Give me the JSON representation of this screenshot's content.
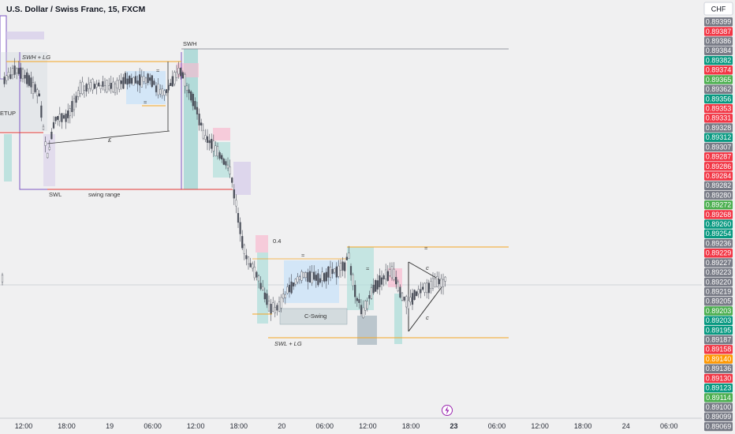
{
  "chart_data": {
    "type": "candlestick",
    "title": "U.S. Dollar / Swiss Franc, 15, FXCM",
    "currency": "CHF",
    "x_ticks": [
      "12:00",
      "18:00",
      "19",
      "06:00",
      "12:00",
      "18:00",
      "20",
      "06:00",
      "12:00",
      "18:00",
      "23",
      "06:00",
      "12:00",
      "18:00",
      "24",
      "06:00"
    ],
    "bold_x_tick": "23",
    "price_labels": [
      {
        "value": "0.89399",
        "color": "#787b86"
      },
      {
        "value": "0.89387",
        "color": "#f23645"
      },
      {
        "value": "0.89386",
        "color": "#787b86"
      },
      {
        "value": "0.89384",
        "color": "#787b86"
      },
      {
        "value": "0.89382",
        "color": "#089981"
      },
      {
        "value": "0.89374",
        "color": "#f23645"
      },
      {
        "value": "0.89365",
        "color": "#4caf50"
      },
      {
        "value": "0.89362",
        "color": "#787b86"
      },
      {
        "value": "0.89356",
        "color": "#089981"
      },
      {
        "value": "0.89353",
        "color": "#f23645"
      },
      {
        "value": "0.89331",
        "color": "#f23645"
      },
      {
        "value": "0.89328",
        "color": "#787b86"
      },
      {
        "value": "0.89312",
        "color": "#089981"
      },
      {
        "value": "0.89307",
        "color": "#787b86"
      },
      {
        "value": "0.89287",
        "color": "#f23645"
      },
      {
        "value": "0.89286",
        "color": "#f23645"
      },
      {
        "value": "0.89284",
        "color": "#f23645"
      },
      {
        "value": "0.89282",
        "color": "#787b86"
      },
      {
        "value": "0.89280",
        "color": "#787b86"
      },
      {
        "value": "0.89272",
        "color": "#4caf50"
      },
      {
        "value": "0.89268",
        "color": "#f23645"
      },
      {
        "value": "0.89260",
        "color": "#089981"
      },
      {
        "value": "0.89254",
        "color": "#089981"
      },
      {
        "value": "0.89236",
        "color": "#787b86"
      },
      {
        "value": "0.89229",
        "color": "#f23645"
      },
      {
        "value": "0.89227",
        "color": "#787b86"
      },
      {
        "value": "0.89223",
        "color": "#787b86"
      },
      {
        "value": "0.89220",
        "color": "#787b86"
      },
      {
        "value": "0.89219",
        "color": "#787b86"
      },
      {
        "value": "0.89205",
        "color": "#787b86"
      },
      {
        "value": "0.89203",
        "color": "#4caf50"
      },
      {
        "value": "0.89203",
        "color": "#089981"
      },
      {
        "value": "0.89195",
        "color": "#089981"
      },
      {
        "value": "0.89187",
        "color": "#787b86"
      },
      {
        "value": "0.89158",
        "color": "#f23645"
      },
      {
        "value": "0.89140",
        "color": "#ff9800"
      },
      {
        "value": "0.89136",
        "color": "#787b86"
      },
      {
        "value": "0.89130",
        "color": "#f23645"
      },
      {
        "value": "0.89123",
        "color": "#089981"
      },
      {
        "value": "0.89114",
        "color": "#4caf50"
      },
      {
        "value": "0.89100",
        "color": "#787b86"
      },
      {
        "value": "0.89099",
        "color": "#787b86"
      },
      {
        "value": "0.89069",
        "color": "#787b86"
      }
    ],
    "annotations": [
      "SWH + LG",
      "SWH",
      "SWL",
      "swing range",
      "C-Swing",
      "SWL + LG",
      "ETUP",
      "£",
      "0.4"
    ],
    "colors": {
      "up": "#089981",
      "down": "#f23645",
      "candle_monochrome": "#4a4e59",
      "orange_level": "#f5a623",
      "red_level": "#e53935",
      "purple_box": "#7e57c2"
    }
  }
}
